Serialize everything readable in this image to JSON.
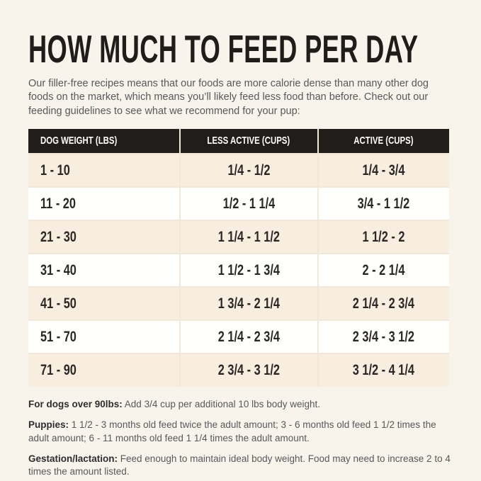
{
  "page": {
    "title": "HOW MUCH TO FEED PER DAY",
    "intro": "Our filler-free recipes means that our foods are more calorie dense than many other dog foods on the market, which means you’ll likely feed less food than before. Check out our feeding guidelines to see what we recommend for your pup:"
  },
  "table": {
    "columns": [
      "DOG WEIGHT (LBS)",
      "LESS ACTIVE (CUPS)",
      "ACTIVE (CUPS)"
    ],
    "rows": [
      [
        "1 - 10",
        "1/4 - 1/2",
        "1/4 - 3/4"
      ],
      [
        "11 - 20",
        "1/2 - 1 1/4",
        "3/4 - 1 1/2"
      ],
      [
        "21 - 30",
        "1 1/4 - 1 1/2",
        "1 1/2 - 2"
      ],
      [
        "31 - 40",
        "1 1/2 - 1 3/4",
        "2 - 2 1/4"
      ],
      [
        "41 - 50",
        "1 3/4 - 2 1/4",
        "2 1/4 - 2 3/4"
      ],
      [
        "51 - 70",
        "2 1/4 - 2 3/4",
        "2 3/4 - 3 1/2"
      ],
      [
        "71 - 90",
        "2 3/4 - 3 1/2",
        "3 1/2 - 4 1/4"
      ]
    ]
  },
  "notes": [
    {
      "label": "For dogs over 90lbs:",
      "text": "Add 3/4 cup per additional 10 lbs body weight."
    },
    {
      "label": "Puppies:",
      "text": "1 1/2 - 3 months old feed twice the adult amount; 3 - 6 months old feed 1 1/2 times the adult amount; 6 - 11 months old feed 1 1/4 times the adult amount."
    },
    {
      "label": "Gestation/lactation:",
      "text": "Feed enough to maintain ideal body weight. Food may need to increase 2 to 4 times the amount listed."
    }
  ],
  "colors": {
    "page_bg": "#f8f4eb",
    "header_bg": "#211d1b",
    "row_alt_bg": "#f7eee0",
    "row_bg": "#fffffe",
    "grid_line": "#f1e8da",
    "title_color": "#201c1a",
    "body_text": "#56585a",
    "cell_text": "#2a2725",
    "note_label": "#2d2d2d"
  }
}
